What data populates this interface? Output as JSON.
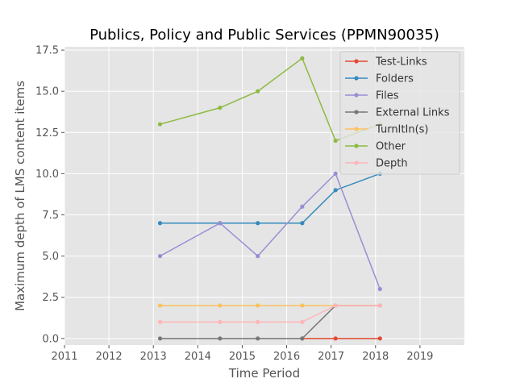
{
  "chart_data": {
    "type": "line",
    "title": "Publics, Policy and Public Services (PPMN90035)",
    "xlabel": "Time Period",
    "ylabel": "Maximum depth of LMS content items",
    "xlim": [
      2011,
      2020
    ],
    "ylim": [
      -0.4,
      17.7
    ],
    "x_ticks": [
      "2011",
      "2012",
      "2013",
      "2014",
      "2015",
      "2016",
      "2017",
      "2018",
      "2019"
    ],
    "y_ticks": [
      "0.0",
      "2.5",
      "5.0",
      "7.5",
      "10.0",
      "12.5",
      "15.0",
      "17.5"
    ],
    "grid": true,
    "legend_position": "top-right",
    "x": [
      2013.15,
      2014.5,
      2015.35,
      2016.35,
      2017.1,
      2018.1
    ],
    "series": [
      {
        "name": "Test-Links",
        "color": "#e24a33",
        "values": [
          null,
          null,
          null,
          0,
          0,
          0
        ]
      },
      {
        "name": "Folders",
        "color": "#348abd",
        "values": [
          7,
          7,
          7,
          7,
          9,
          10
        ]
      },
      {
        "name": "Files",
        "color": "#988ed5",
        "values": [
          5,
          7,
          5,
          8,
          10,
          3
        ]
      },
      {
        "name": "External Links",
        "color": "#777777",
        "values": [
          0,
          0,
          0,
          0,
          2,
          2
        ]
      },
      {
        "name": "TurnItIn(s)",
        "color": "#fbc15e",
        "values": [
          2,
          2,
          2,
          2,
          2,
          2
        ]
      },
      {
        "name": "Other",
        "color": "#8eba42",
        "values": [
          13,
          14,
          15,
          17,
          12,
          13
        ]
      },
      {
        "name": "Depth",
        "color": "#ffb5b8",
        "values": [
          1,
          1,
          1,
          1,
          2,
          2
        ]
      }
    ]
  }
}
